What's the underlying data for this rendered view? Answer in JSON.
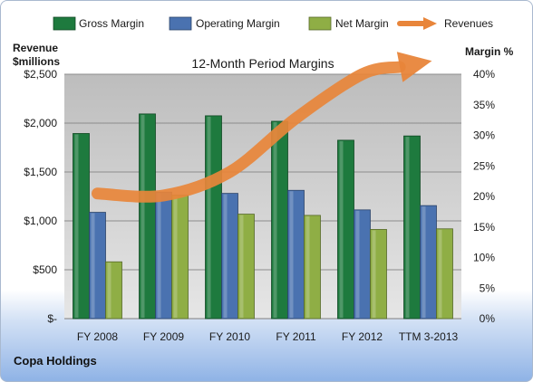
{
  "chart_data": {
    "type": "bar",
    "title": "12-Month Period Margins",
    "company": "Copa Holdings",
    "categories": [
      "FY 2008",
      "FY 2009",
      "FY 2010",
      "FY 2011",
      "FY 2012",
      "TTM 3-2013"
    ],
    "series": [
      {
        "name": "Gross Margin",
        "axis": "right",
        "unit": "%",
        "color": "#1e7a3e",
        "values": [
          30.3,
          33.5,
          33.2,
          32.3,
          29.2,
          29.9
        ]
      },
      {
        "name": "Operating Margin",
        "axis": "right",
        "unit": "%",
        "color": "#4a72b0",
        "values": [
          17.4,
          20.7,
          20.5,
          21.0,
          17.8,
          18.5
        ]
      },
      {
        "name": "Net Margin",
        "axis": "right",
        "unit": "%",
        "color": "#8fae45",
        "values": [
          9.3,
          20.2,
          17.1,
          16.9,
          14.6,
          14.7
        ]
      }
    ],
    "revenues": {
      "name": "Revenues",
      "axis": "left",
      "unit": "$millions",
      "color": "#e8853a",
      "values": [
        1280,
        1260,
        1500,
        2050,
        2500,
        2630
      ]
    },
    "left_axis": {
      "label_line1": "Revenue",
      "label_line2": "$millions",
      "ylim": [
        0,
        2500
      ],
      "ticks": [
        "$-",
        "$500",
        "$1,000",
        "$1,500",
        "$2,000",
        "$2,500"
      ]
    },
    "right_axis": {
      "label": "Margin %",
      "ylim": [
        0,
        40
      ],
      "ticks": [
        "0%",
        "5%",
        "10%",
        "15%",
        "20%",
        "25%",
        "30%",
        "35%",
        "40%"
      ]
    },
    "legend": {
      "position": "top",
      "items": [
        {
          "label": "Gross Margin",
          "color": "#1e7a3e",
          "kind": "bar"
        },
        {
          "label": "Operating Margin",
          "color": "#4a72b0",
          "kind": "bar"
        },
        {
          "label": "Net Margin",
          "color": "#8fae45",
          "kind": "bar"
        },
        {
          "label": "Revenues",
          "color": "#e8853a",
          "kind": "arrow"
        }
      ]
    },
    "grid": true
  }
}
